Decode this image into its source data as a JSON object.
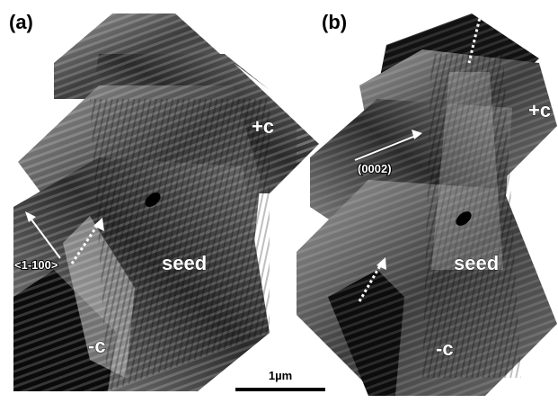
{
  "panels": [
    {
      "label": "(a)",
      "annotations": {
        "plus_c": "+c",
        "seed": "seed",
        "minus_c": "-c",
        "direction": "<1-100>"
      }
    },
    {
      "label": "(b)",
      "annotations": {
        "plus_c": "+c",
        "direction": "(0002)",
        "seed": "seed",
        "minus_c": "-c"
      }
    }
  ],
  "scale_bar": "1µm"
}
